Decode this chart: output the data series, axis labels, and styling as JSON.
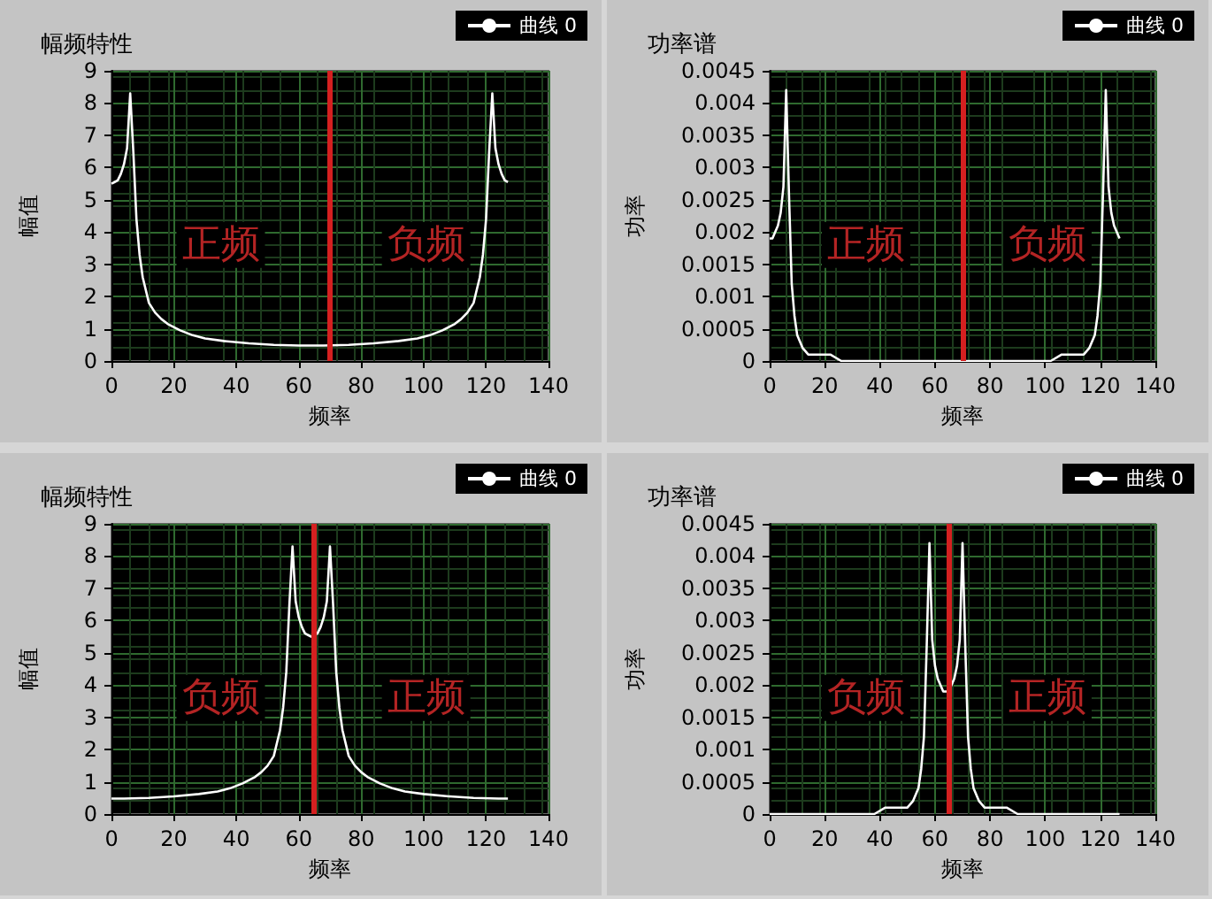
{
  "chart_data": [
    {
      "type": "line",
      "title": "幅频特性",
      "xlabel": "频率",
      "ylabel": "幅值",
      "legend": "top right",
      "grid": true,
      "marker": "none",
      "series": [
        {
          "name": "曲线 0",
          "color": "#ffffff",
          "x": [
            0,
            1,
            2,
            3,
            4,
            5,
            6,
            7,
            8,
            9,
            10,
            12,
            14,
            16,
            18,
            22,
            26,
            30,
            36,
            44,
            52,
            60,
            64,
            68,
            76,
            84,
            92,
            98,
            102,
            106,
            110,
            112,
            114,
            116,
            118,
            119,
            120,
            121,
            122,
            123,
            124,
            125,
            126,
            127
          ],
          "values": [
            5.5,
            5.55,
            5.6,
            5.8,
            6.1,
            6.6,
            8.3,
            6.5,
            4.4,
            3.3,
            2.6,
            1.8,
            1.5,
            1.3,
            1.15,
            0.95,
            0.8,
            0.7,
            0.62,
            0.55,
            0.5,
            0.48,
            0.48,
            0.48,
            0.5,
            0.55,
            0.62,
            0.7,
            0.8,
            0.95,
            1.15,
            1.3,
            1.5,
            1.8,
            2.6,
            3.3,
            4.4,
            6.5,
            8.3,
            6.6,
            6.1,
            5.8,
            5.6,
            5.55
          ]
        }
      ],
      "xlim": [
        0,
        140
      ],
      "xticks": [
        0,
        20,
        40,
        60,
        80,
        100,
        120,
        140
      ],
      "ylim": [
        0,
        9
      ],
      "yticks": [
        0,
        1,
        2,
        3,
        4,
        5,
        6,
        7,
        8,
        9
      ],
      "ref_lines": [
        {
          "axis": "x",
          "value": 70,
          "color": "#d42020"
        }
      ],
      "annotations": [
        "正频",
        "负频"
      ]
    },
    {
      "type": "line",
      "title": "功率谱",
      "xlabel": "频率",
      "ylabel": "功率",
      "legend": "top right",
      "grid": true,
      "marker": "none",
      "series": [
        {
          "name": "曲线 0",
          "color": "#ffffff",
          "x": [
            0,
            1,
            2,
            3,
            4,
            5,
            6,
            7,
            8,
            9,
            10,
            12,
            14,
            16,
            18,
            22,
            26,
            30,
            36,
            44,
            52,
            60,
            64,
            68,
            76,
            84,
            92,
            98,
            102,
            106,
            110,
            112,
            114,
            116,
            118,
            119,
            120,
            121,
            122,
            123,
            124,
            125,
            126,
            127
          ],
          "values": [
            0.0019,
            0.0019,
            0.002,
            0.0021,
            0.0023,
            0.0027,
            0.0042,
            0.0026,
            0.0012,
            0.0007,
            0.0004,
            0.0002,
            0.0001,
            0.0001,
            0.0001,
            0.0001,
            0,
            0,
            0,
            0,
            0,
            0,
            0,
            0,
            0,
            0,
            0,
            0,
            0,
            0.0001,
            0.0001,
            0.0001,
            0.0001,
            0.0002,
            0.0004,
            0.0007,
            0.0012,
            0.0026,
            0.0042,
            0.0027,
            0.0023,
            0.0021,
            0.002,
            0.0019
          ]
        }
      ],
      "xlim": [
        0,
        140
      ],
      "xticks": [
        0,
        20,
        40,
        60,
        80,
        100,
        120,
        140
      ],
      "ylim": [
        0,
        0.0045
      ],
      "yticks": [
        0,
        0.0005,
        0.001,
        0.0015,
        0.002,
        0.0025,
        0.003,
        0.0035,
        0.004,
        0.0045
      ],
      "ref_lines": [
        {
          "axis": "x",
          "value": 70,
          "color": "#d42020"
        }
      ],
      "annotations": [
        "正频",
        "负频"
      ]
    },
    {
      "type": "line",
      "title": "幅频特性",
      "xlabel": "频率",
      "ylabel": "幅值",
      "legend": "top right",
      "grid": true,
      "marker": "none",
      "series": [
        {
          "name": "曲线 0",
          "color": "#ffffff",
          "x": [
            0,
            4,
            12,
            20,
            28,
            34,
            38,
            42,
            46,
            48,
            50,
            52,
            54,
            55,
            56,
            57,
            58,
            59,
            60,
            61,
            62,
            63,
            64,
            65,
            66,
            67,
            68,
            69,
            70,
            71,
            72,
            73,
            74,
            76,
            78,
            80,
            82,
            86,
            90,
            94,
            100,
            108,
            116,
            124,
            127
          ],
          "values": [
            0.48,
            0.48,
            0.5,
            0.55,
            0.62,
            0.7,
            0.8,
            0.95,
            1.15,
            1.3,
            1.5,
            1.8,
            2.6,
            3.3,
            4.4,
            6.5,
            8.3,
            6.6,
            6.1,
            5.8,
            5.6,
            5.55,
            5.5,
            5.55,
            5.6,
            5.8,
            6.1,
            6.6,
            8.3,
            6.5,
            4.4,
            3.3,
            2.6,
            1.8,
            1.5,
            1.3,
            1.15,
            0.95,
            0.8,
            0.7,
            0.62,
            0.55,
            0.5,
            0.48,
            0.48
          ]
        }
      ],
      "xlim": [
        0,
        140
      ],
      "xticks": [
        0,
        20,
        40,
        60,
        80,
        100,
        120,
        140
      ],
      "ylim": [
        0,
        9
      ],
      "yticks": [
        0,
        1,
        2,
        3,
        4,
        5,
        6,
        7,
        8,
        9
      ],
      "ref_lines": [
        {
          "axis": "x",
          "value": 65,
          "color": "#d42020"
        }
      ],
      "annotations": [
        "负频",
        "正频"
      ]
    },
    {
      "type": "line",
      "title": "功率谱",
      "xlabel": "频率",
      "ylabel": "功率",
      "legend": "top right",
      "grid": true,
      "marker": "none",
      "series": [
        {
          "name": "曲线 0",
          "color": "#ffffff",
          "x": [
            0,
            4,
            12,
            20,
            28,
            34,
            38,
            42,
            46,
            48,
            50,
            52,
            54,
            55,
            56,
            57,
            58,
            59,
            60,
            61,
            62,
            63,
            64,
            65,
            66,
            67,
            68,
            69,
            70,
            71,
            72,
            73,
            74,
            76,
            78,
            80,
            82,
            86,
            90,
            94,
            100,
            108,
            116,
            124,
            127
          ],
          "values": [
            0,
            0,
            0,
            0,
            0,
            0,
            0,
            0.0001,
            0.0001,
            0.0001,
            0.0001,
            0.0002,
            0.0004,
            0.0007,
            0.0012,
            0.0026,
            0.0042,
            0.0027,
            0.0023,
            0.0021,
            0.002,
            0.0019,
            0.0019,
            0.0019,
            0.002,
            0.0021,
            0.0023,
            0.0027,
            0.0042,
            0.0026,
            0.0012,
            0.0007,
            0.0004,
            0.0002,
            0.0001,
            0.0001,
            0.0001,
            0.0001,
            0,
            0,
            0,
            0,
            0,
            0,
            0
          ]
        }
      ],
      "xlim": [
        0,
        140
      ],
      "xticks": [
        0,
        20,
        40,
        60,
        80,
        100,
        120,
        140
      ],
      "ylim": [
        0,
        0.0045
      ],
      "yticks": [
        0,
        0.0005,
        0.001,
        0.0015,
        0.002,
        0.0025,
        0.003,
        0.0035,
        0.004,
        0.0045
      ],
      "ref_lines": [
        {
          "axis": "x",
          "value": 65,
          "color": "#d42020"
        }
      ],
      "annotations": [
        "负频",
        "正频"
      ]
    }
  ]
}
